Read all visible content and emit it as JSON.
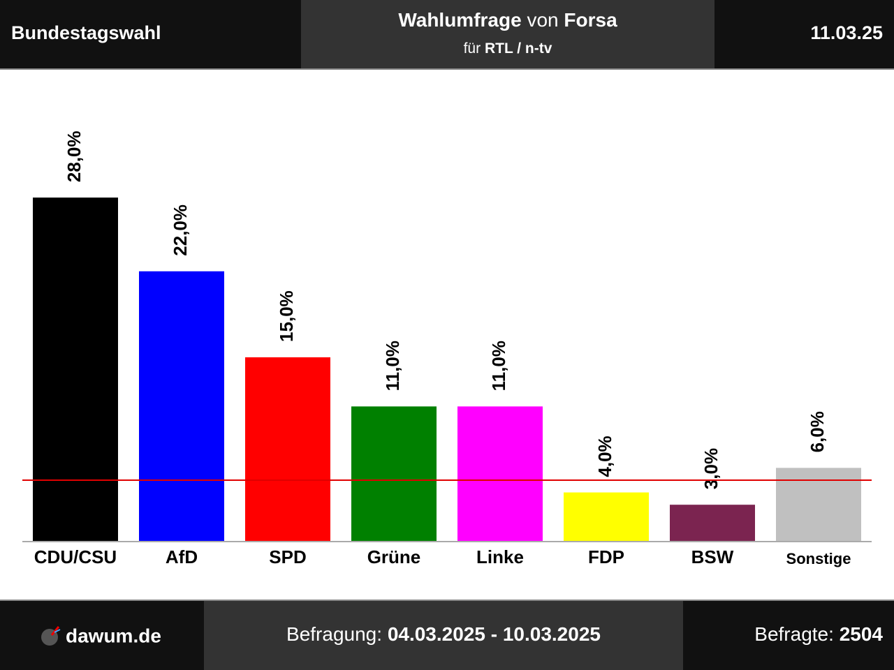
{
  "header": {
    "left": "Bundestagswahl",
    "title_1": "Wahlumfrage",
    "title_2": "von",
    "title_3": "Forsa",
    "subtitle_1": "für",
    "subtitle_2": "RTL / n-tv",
    "date": "11.03.25"
  },
  "footer": {
    "brand": "dawum.de",
    "period_label": "Befragung:",
    "period": "04.03.2025 - 10.03.2025",
    "sample_label": "Befragte:",
    "sample": "2504"
  },
  "chart_data": {
    "type": "bar",
    "categories": [
      "CDU/CSU",
      "AfD",
      "SPD",
      "Grüne",
      "Linke",
      "FDP",
      "BSW",
      "Sonstige"
    ],
    "values": [
      28,
      22,
      15,
      11,
      11,
      4,
      3,
      6
    ],
    "value_labels": [
      "28,0%",
      "22,0%",
      "15,0%",
      "11,0%",
      "11,0%",
      "4,0%",
      "3,0%",
      "6,0%"
    ],
    "colors": [
      "#000000",
      "#0000ff",
      "#ff0000",
      "#008000",
      "#ff00ff",
      "#ffff00",
      "#7b2450",
      "#c0c0c0"
    ],
    "ylim": [
      0,
      38.4
    ],
    "threshold": 5,
    "threshold_color": "#e00000"
  }
}
